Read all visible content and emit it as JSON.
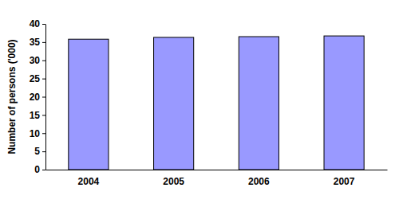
{
  "chart_data": {
    "type": "bar",
    "y_label": "Number of persons ('000)",
    "categories": [
      "2004",
      "2005",
      "2006",
      "2007"
    ],
    "values": [
      35.8,
      36.3,
      36.5,
      36.7
    ],
    "color": "#9999ff",
    "ylim": [
      0,
      40
    ],
    "yticks": [
      0,
      5,
      10,
      15,
      20,
      25,
      30,
      35,
      40
    ],
    "grid": false
  }
}
